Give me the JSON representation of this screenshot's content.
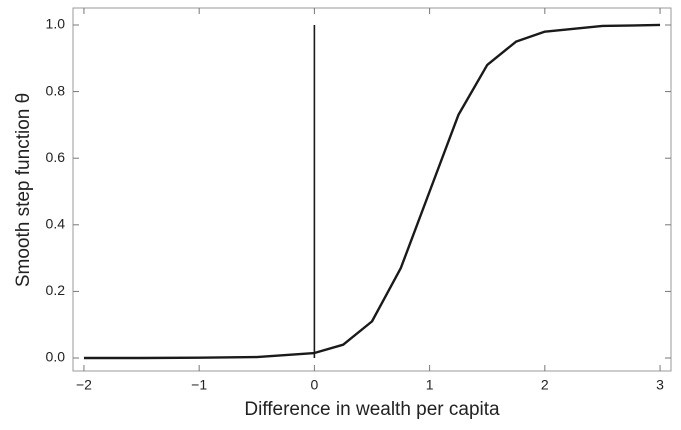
{
  "chart_data": {
    "type": "line",
    "xlabel": "Difference in wealth per capita",
    "ylabel": "Smooth step function θ",
    "series": [
      {
        "color": "#1a1a1a",
        "x": [
          -2,
          -1.5,
          -1,
          -0.5,
          0,
          0.25,
          0.5,
          0.75,
          1,
          1.25,
          1.5,
          1.75,
          2,
          2.5,
          3
        ],
        "values": [
          0,
          0,
          0.001,
          0.003,
          0.015,
          0.04,
          0.11,
          0.27,
          0.5,
          0.73,
          0.88,
          0.95,
          0.98,
          0.997,
          1.0
        ]
      },
      {
        "color": "#1a1a1a",
        "x": [
          0,
          0
        ],
        "values": [
          0,
          1
        ]
      }
    ],
    "xlim": [
      -2.095,
      3.095
    ],
    "ylim": [
      -0.039,
      1.051
    ],
    "xticks": [
      {
        "value": -2,
        "label": "−2"
      },
      {
        "value": -1,
        "label": "−1"
      },
      0,
      1,
      2,
      3
    ],
    "yticks": [
      {
        "value": 0,
        "label": "0.0"
      },
      {
        "value": 0.2,
        "label": "0.2"
      },
      {
        "value": 0.4,
        "label": "0.4"
      },
      {
        "value": 0.6,
        "label": "0.6"
      },
      {
        "value": 0.8,
        "label": "0.8"
      },
      {
        "value": 1,
        "label": "1.0"
      }
    ],
    "grid": false
  }
}
